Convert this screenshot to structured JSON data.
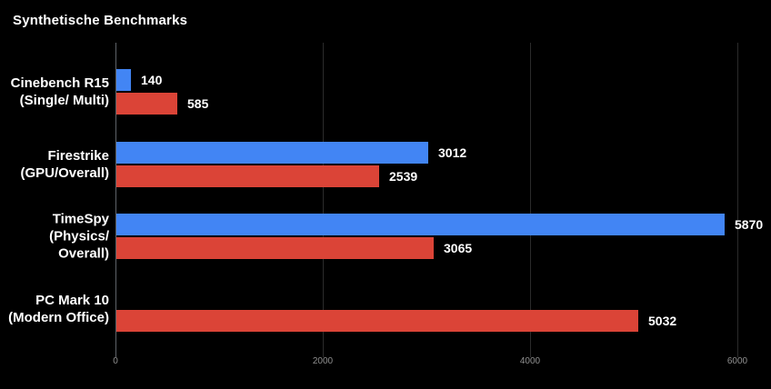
{
  "chart_data": {
    "type": "bar",
    "orientation": "horizontal",
    "title": "Synthetische Benchmarks",
    "background_color": "#000000",
    "title_color": "#ffffff",
    "value_label_color": "#ffffff",
    "gridline_color": "#2b2b2b",
    "zero_line_color": "#5f6368",
    "tick_label_color": "#8f8f8f",
    "legend": "none",
    "value_labels_shown": true,
    "categories": [
      "Cinebench R15 (Single/ Multi)",
      "Firestrike (GPU/Overall)",
      "TimeSpy (Physics/ Overall)",
      "PC Mark 10 (Modern Office)"
    ],
    "category_label_lines": [
      [
        "Cinebench R15",
        "(Single/ Multi)"
      ],
      [
        "Firestrike",
        "(GPU/Overall)"
      ],
      [
        "TimeSpy",
        "(Physics/",
        "Overall)"
      ],
      [
        "PC Mark 10",
        "(Modern Office)"
      ]
    ],
    "series": [
      {
        "name": "blue-series",
        "color": "#4285f4",
        "values": [
          140,
          3012,
          5870,
          null
        ]
      },
      {
        "name": "red-series",
        "color": "#db4437",
        "values": [
          585,
          2539,
          3065,
          5032
        ]
      }
    ],
    "x_axis": {
      "ticks": [
        0,
        2000,
        4000,
        6000
      ],
      "range": [
        0,
        6320
      ],
      "grid": true
    }
  }
}
